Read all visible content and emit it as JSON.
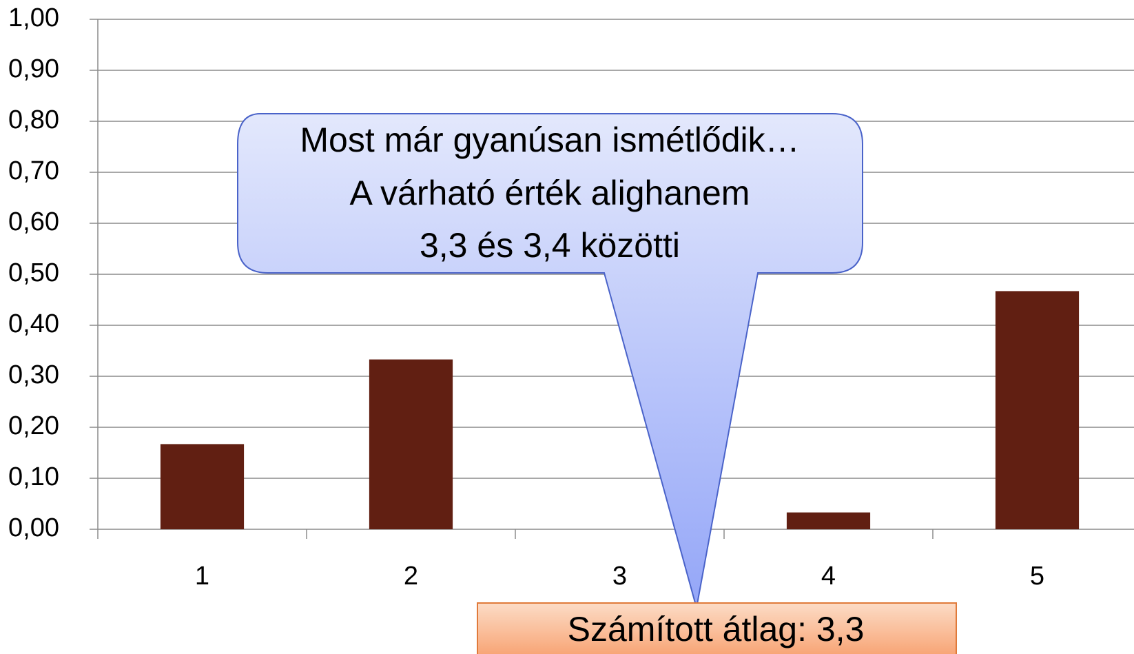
{
  "chart_data": {
    "type": "bar",
    "categories": [
      "1",
      "2",
      "3",
      "4",
      "5"
    ],
    "values": [
      0.167,
      0.333,
      0,
      0.033,
      0.467
    ],
    "color": "#611f12",
    "ylim": [
      0,
      1
    ],
    "yticks": [
      {
        "value": 0,
        "label": "0,00"
      },
      {
        "value": 0.1,
        "label": "0,10"
      },
      {
        "value": 0.2,
        "label": "0,20"
      },
      {
        "value": 0.3,
        "label": "0,30"
      },
      {
        "value": 0.4,
        "label": "0,40"
      },
      {
        "value": 0.5,
        "label": "0,50"
      },
      {
        "value": 0.6,
        "label": "0,60"
      },
      {
        "value": 0.7,
        "label": "0,70"
      },
      {
        "value": 0.8,
        "label": "0,80"
      },
      {
        "value": 0.9,
        "label": "0,90"
      },
      {
        "value": 1,
        "label": "1,00"
      }
    ],
    "grid": true,
    "annotations": {
      "callout": [
        "Most már gyanúsan ismétlődik…",
        "A várható érték alighanem",
        "3,3 és 3,4 közötti"
      ],
      "result": "Számított átlag: 3,3"
    }
  }
}
